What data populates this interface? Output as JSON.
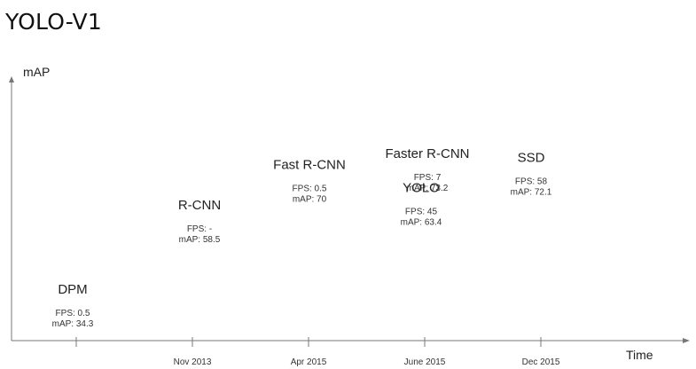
{
  "page_title": "YOLO-V1",
  "chart_data": {
    "type": "scatter",
    "ylabel": "mAP",
    "xlabel": "Time",
    "categories": [
      "",
      "Nov 2013",
      "Apr 2015",
      "June 2015",
      "Dec 2015"
    ],
    "grid": false,
    "points": [
      {
        "name": "DPM",
        "x_index": 0,
        "fps": "FPS: 0.5",
        "map_text": "mAP: 34.3",
        "mAP": 34.3
      },
      {
        "name": "R-CNN",
        "x_index": 1,
        "fps": "FPS: -",
        "map_text": "mAP: 58.5",
        "mAP": 58.5
      },
      {
        "name": "Fast R-CNN",
        "x_index": 2,
        "fps": "FPS: 0.5",
        "map_text": "mAP: 70",
        "mAP": 70
      },
      {
        "name": "Faster R-CNN",
        "x_index": 3,
        "fps": "FPS: 7",
        "map_text": "mAP: 73.2",
        "mAP": 73.2
      },
      {
        "name": "YOLO",
        "x_index": 3,
        "fps": "FPS: 45",
        "map_text": "mAP: 63.4",
        "mAP": 63.4
      },
      {
        "name": "SSD",
        "x_index": 4,
        "fps": "FPS: 58",
        "map_text": "mAP: 72.1",
        "mAP": 72.1
      }
    ]
  }
}
